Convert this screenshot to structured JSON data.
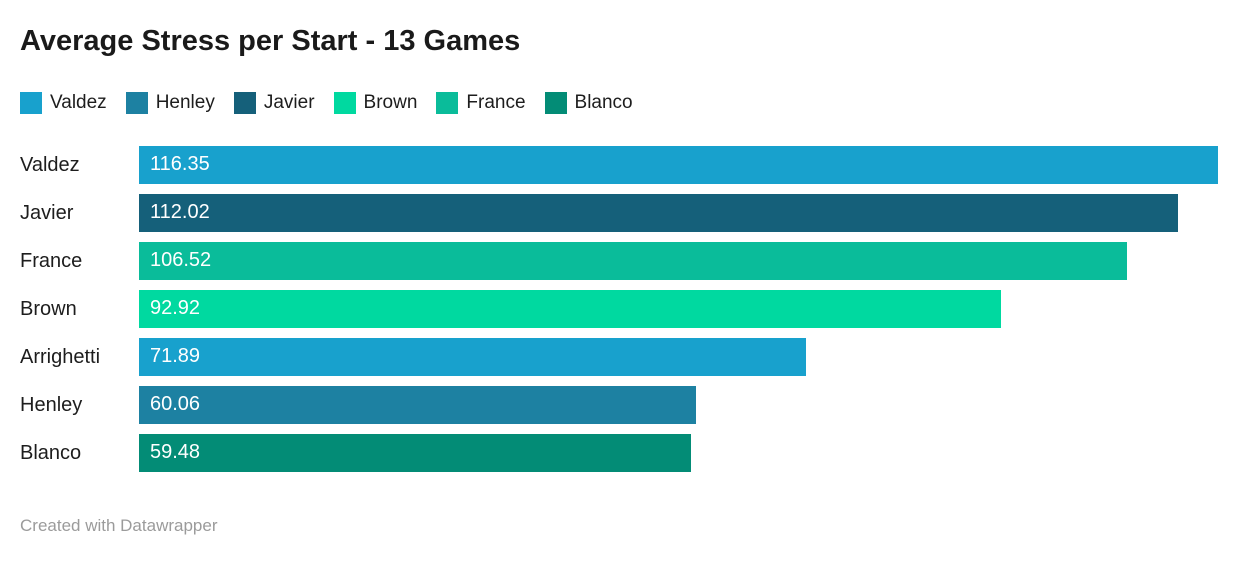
{
  "header": {
    "title": "Average Stress per Start - 13 Games"
  },
  "footer": {
    "credit": "Created with Datawrapper"
  },
  "chart_data": {
    "type": "bar",
    "orientation": "horizontal",
    "title": "Average Stress per Start - 13 Games",
    "categories": [
      "Valdez",
      "Javier",
      "France",
      "Brown",
      "Arrighetti",
      "Henley",
      "Blanco"
    ],
    "values": [
      116.35,
      112.02,
      106.52,
      92.92,
      71.89,
      60.06,
      59.48
    ],
    "value_labels": [
      "116.35",
      "112.02",
      "106.52",
      "92.92",
      "71.89",
      "60.06",
      "59.48"
    ],
    "bar_colors": [
      "#18a1cd",
      "#15607a",
      "#0abc9a",
      "#00d9a0",
      "#18a1cd",
      "#1d81a2",
      "#038c76"
    ],
    "xlim": [
      0,
      116.35
    ],
    "grid": false,
    "value_labels_inside_bars": true,
    "legend_position": "top",
    "legend": [
      {
        "label": "Valdez",
        "color": "#18a1cd"
      },
      {
        "label": "Henley",
        "color": "#1d81a2"
      },
      {
        "label": "Javier",
        "color": "#15607a"
      },
      {
        "label": "Brown",
        "color": "#00d9a0"
      },
      {
        "label": "France",
        "color": "#0abc9a"
      },
      {
        "label": "Blanco",
        "color": "#038c76"
      }
    ]
  }
}
